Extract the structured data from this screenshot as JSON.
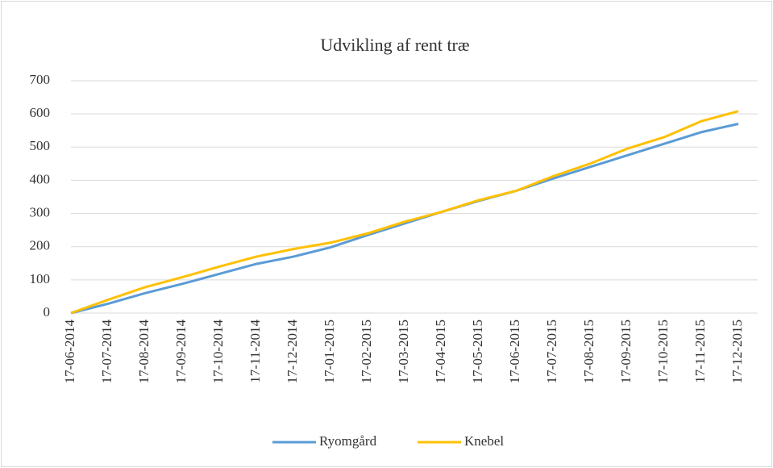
{
  "chart_data": {
    "type": "line",
    "title": "Udvikling af rent træ",
    "categories": [
      "17-06-2014",
      "17-07-2014",
      "17-08-2014",
      "17-09-2014",
      "17-10-2014",
      "17-11-2014",
      "17-12-2014",
      "17-01-2015",
      "17-02-2015",
      "17-03-2015",
      "17-04-2015",
      "17-05-2015",
      "17-06-2015",
      "17-07-2015",
      "17-08-2015",
      "17-09-2015",
      "17-10-2015",
      "17-11-2015",
      "17-12-2015"
    ],
    "series": [
      {
        "name": "Ryomgård",
        "color": "#5b9bd5",
        "values": [
          0,
          28,
          60,
          88,
          118,
          148,
          170,
          198,
          235,
          270,
          305,
          338,
          368,
          405,
          440,
          475,
          510,
          545,
          570
        ]
      },
      {
        "name": "Knebel",
        "color": "#ffc000",
        "values": [
          0,
          40,
          78,
          108,
          140,
          170,
          193,
          212,
          240,
          275,
          305,
          340,
          368,
          412,
          450,
          495,
          530,
          578,
          608
        ]
      }
    ],
    "ylim": [
      0,
      700
    ],
    "yticks": [
      0,
      100,
      200,
      300,
      400,
      500,
      600,
      700
    ],
    "grid": true,
    "legend": "bottom"
  }
}
